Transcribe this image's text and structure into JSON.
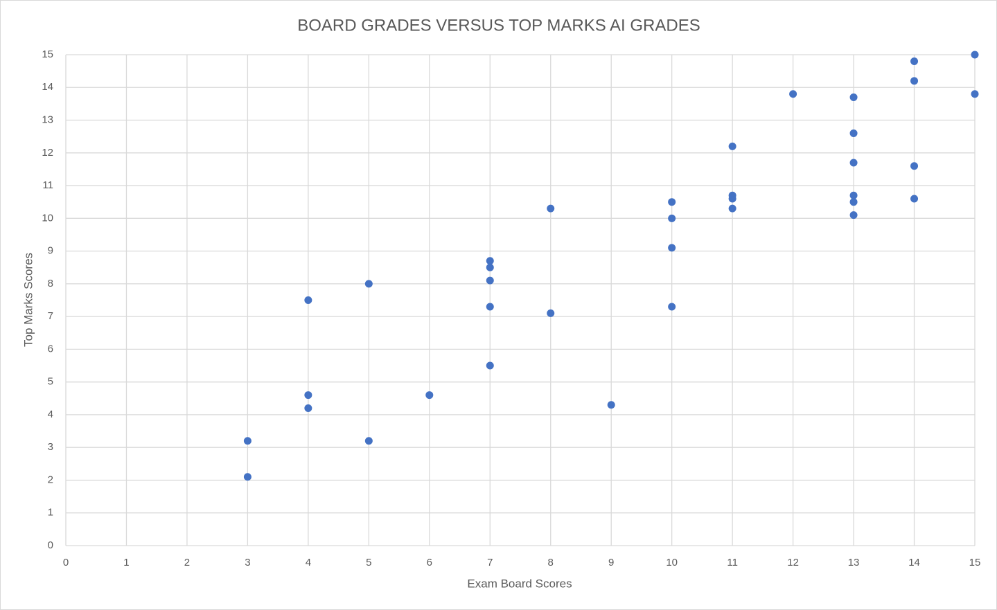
{
  "chart_data": {
    "type": "scatter",
    "title": "BOARD GRADES VERSUS TOP MARKS AI GRADES",
    "x_label": "Exam Board Scores",
    "y_label": "Top Marks Scores",
    "x": [
      3,
      3,
      4,
      4,
      4,
      5,
      5,
      6,
      7,
      7,
      7,
      7,
      7,
      8,
      8,
      9,
      10,
      10,
      10,
      10,
      11,
      11,
      11,
      11,
      12,
      13,
      13,
      13,
      13,
      13,
      13,
      14,
      14,
      14,
      14,
      15,
      15
    ],
    "values": [
      3.2,
      2.1,
      7.5,
      4.6,
      4.2,
      8.0,
      3.2,
      4.6,
      8.7,
      8.5,
      8.1,
      7.3,
      5.5,
      10.3,
      7.1,
      4.3,
      10.5,
      10.0,
      9.1,
      7.3,
      12.2,
      10.7,
      10.6,
      10.3,
      13.8,
      13.7,
      12.6,
      11.7,
      10.7,
      10.5,
      10.1,
      14.8,
      14.2,
      11.6,
      10.6,
      15.0,
      13.8
    ],
    "color": "#4472c4",
    "xlim": [
      0,
      15
    ],
    "xticks": [
      0,
      1,
      2,
      3,
      4,
      5,
      6,
      7,
      8,
      9,
      10,
      11,
      12,
      13,
      14,
      15
    ],
    "ylim": [
      0,
      15
    ],
    "yticks": [
      0,
      1,
      2,
      3,
      4,
      5,
      6,
      7,
      8,
      9,
      10,
      11,
      12,
      13,
      14,
      15
    ],
    "grid": true
  }
}
